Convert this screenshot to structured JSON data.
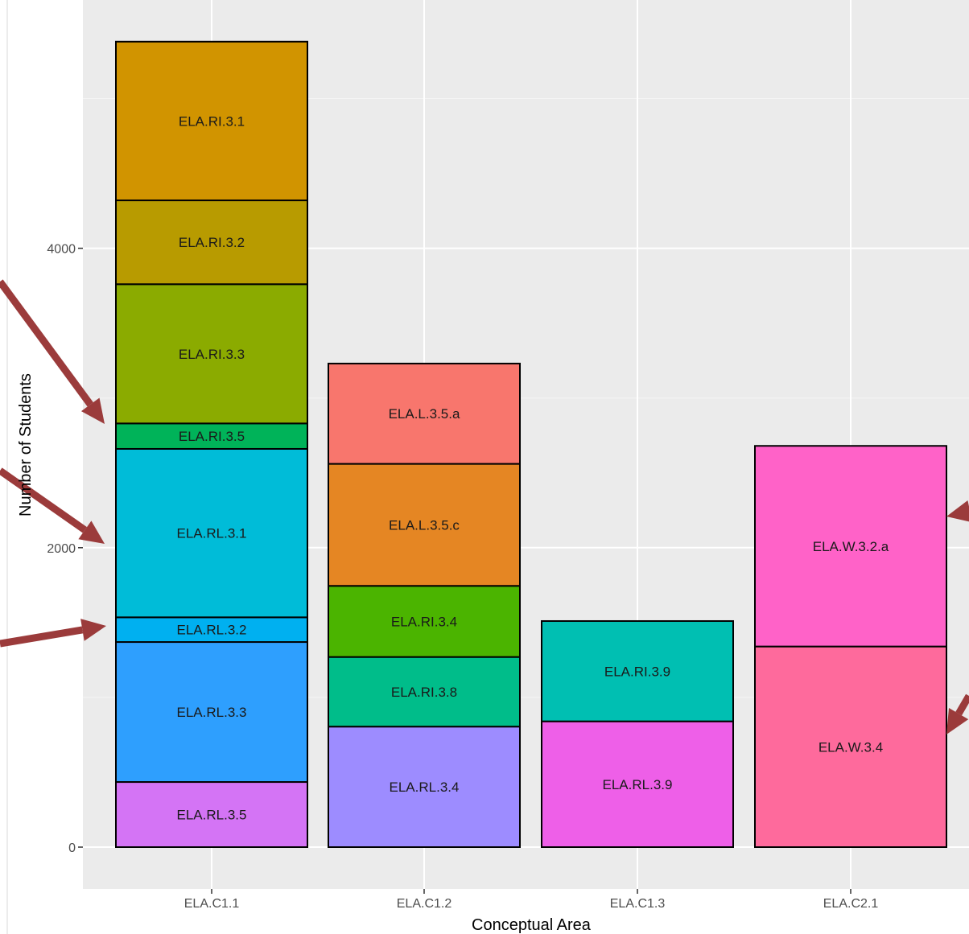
{
  "chart_data": {
    "type": "bar",
    "stacked": true,
    "xlabel": "Conceptual Area",
    "ylabel": "Number of Students",
    "ylim": [
      -280,
      5650
    ],
    "y_ticks": [
      0,
      2000,
      4000
    ],
    "grid": true,
    "categories": [
      "ELA.C1.1",
      "ELA.C1.2",
      "ELA.C1.3",
      "ELA.C2.1"
    ],
    "stacks": [
      {
        "category": "ELA.C1.1",
        "segments": [
          {
            "label": "ELA.RL.3.5",
            "value": 435,
            "color": "#d474f5"
          },
          {
            "label": "ELA.RL.3.3",
            "value": 935,
            "color": "#2e9ffe"
          },
          {
            "label": "ELA.RL.3.2",
            "value": 165,
            "color": "#00b0f0"
          },
          {
            "label": "ELA.RL.3.1",
            "value": 1125,
            "color": "#00bcd8"
          },
          {
            "label": "ELA.RI.3.5",
            "value": 170,
            "color": "#00b359"
          },
          {
            "label": "ELA.RI.3.3",
            "value": 930,
            "color": "#8bab00"
          },
          {
            "label": "ELA.RI.3.2",
            "value": 560,
            "color": "#b89b00"
          },
          {
            "label": "ELA.RI.3.1",
            "value": 1060,
            "color": "#d19400"
          }
        ]
      },
      {
        "category": "ELA.C1.2",
        "segments": [
          {
            "label": "ELA.RL.3.4",
            "value": 805,
            "color": "#9d8cff"
          },
          {
            "label": "ELA.RI.3.8",
            "value": 465,
            "color": "#00bd8a"
          },
          {
            "label": "ELA.RI.3.4",
            "value": 475,
            "color": "#4bb400"
          },
          {
            "label": "ELA.L.3.5.c",
            "value": 815,
            "color": "#e58623"
          },
          {
            "label": "ELA.L.3.5.a",
            "value": 670,
            "color": "#f8766d"
          }
        ]
      },
      {
        "category": "ELA.C1.3",
        "segments": [
          {
            "label": "ELA.RL.3.9",
            "value": 840,
            "color": "#ee5fe8"
          },
          {
            "label": "ELA.RI.3.9",
            "value": 670,
            "color": "#00bfb2"
          }
        ]
      },
      {
        "category": "ELA.C2.1",
        "segments": [
          {
            "label": "ELA.W.3.4",
            "value": 1340,
            "color": "#fe6a9c"
          },
          {
            "label": "ELA.W.3.2.a",
            "value": 1340,
            "color": "#ff62c8"
          }
        ]
      }
    ]
  }
}
